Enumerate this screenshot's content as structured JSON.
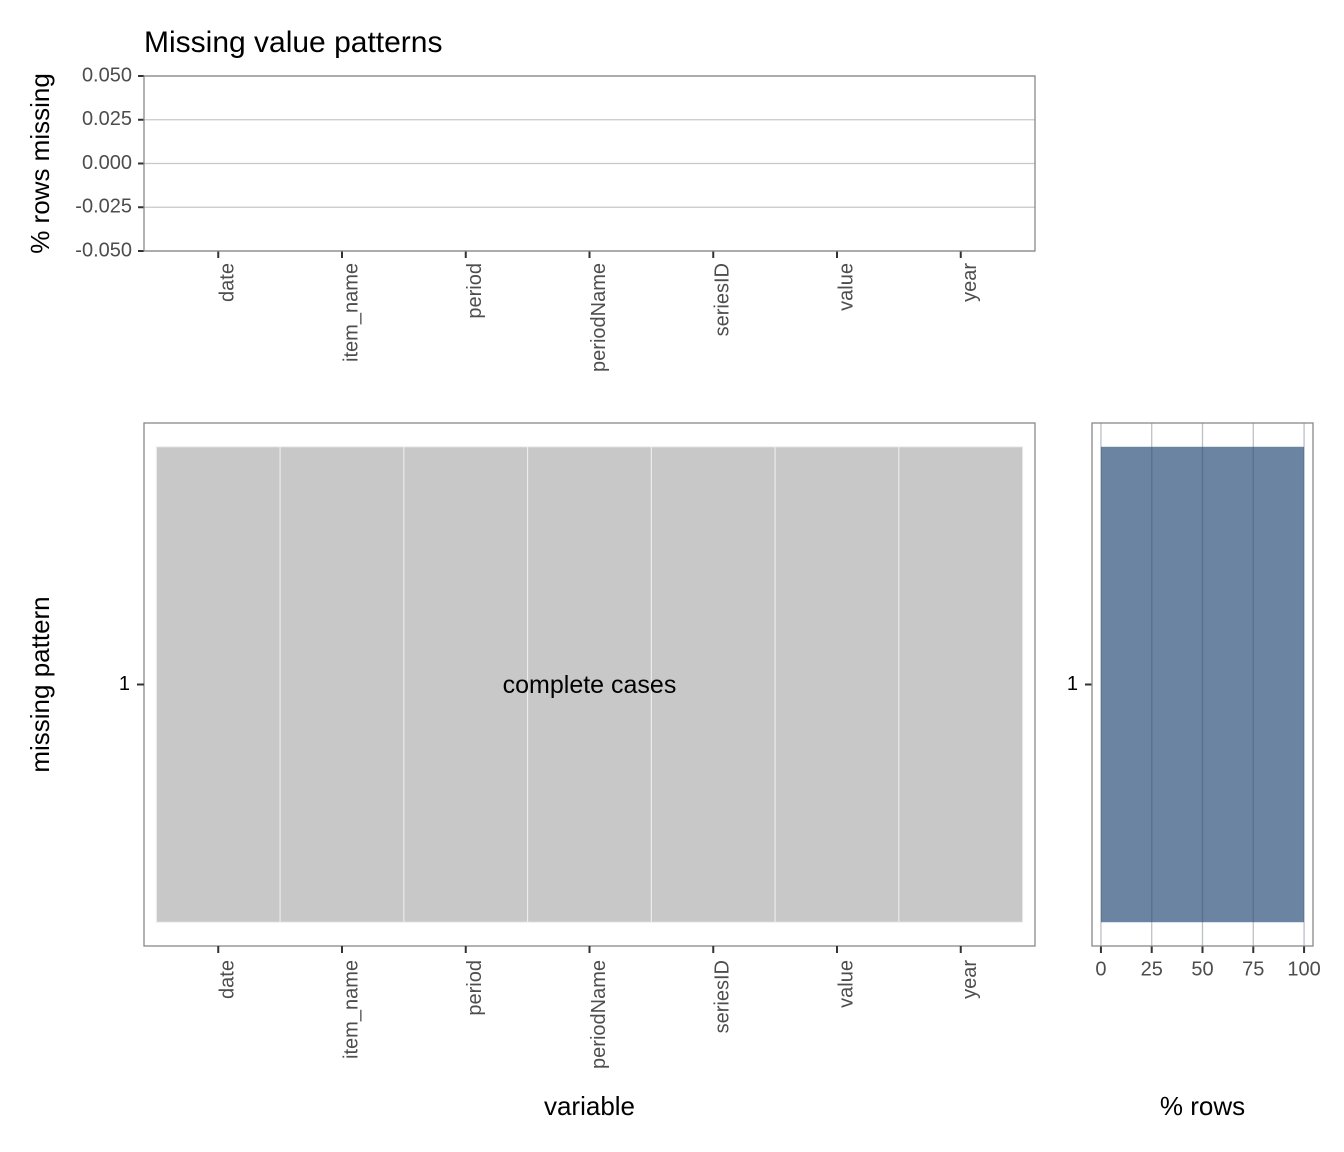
{
  "chart_data": [
    {
      "type": "bar",
      "title": "Missing value patterns",
      "ylabel": "% rows missing",
      "categories": [
        "date",
        "item_name",
        "period",
        "periodName",
        "seriesID",
        "value",
        "year"
      ],
      "values": [
        0,
        0,
        0,
        0,
        0,
        0,
        0
      ],
      "color": "#6a84a2",
      "ylim": [
        -0.05,
        0.05
      ],
      "yticks": [
        {
          "value": -0.05,
          "label": "-0.050"
        },
        {
          "value": -0.025,
          "label": "-0.025"
        },
        {
          "value": 0,
          "label": "0.000"
        },
        {
          "value": 0.025,
          "label": "0.025"
        },
        {
          "value": 0.05,
          "label": "0.050"
        }
      ],
      "grid": true
    },
    {
      "type": "tile",
      "xlabel": "variable",
      "ylabel": "missing pattern",
      "categories": [
        "date",
        "item_name",
        "period",
        "periodName",
        "seriesID",
        "value",
        "year"
      ],
      "patterns": [
        "1"
      ],
      "values": [
        [
          0,
          0,
          0,
          0,
          0,
          0,
          0
        ]
      ],
      "color": "#c8c8c8",
      "annotation": "complete cases"
    },
    {
      "type": "barh",
      "xlabel": "% rows",
      "categories": [
        "1"
      ],
      "values": [
        100
      ],
      "color": "#6a84a2",
      "xlim": [
        -4.4,
        104.4
      ],
      "xticks": [
        0,
        25,
        50,
        75,
        100
      ],
      "grid": true
    }
  ]
}
